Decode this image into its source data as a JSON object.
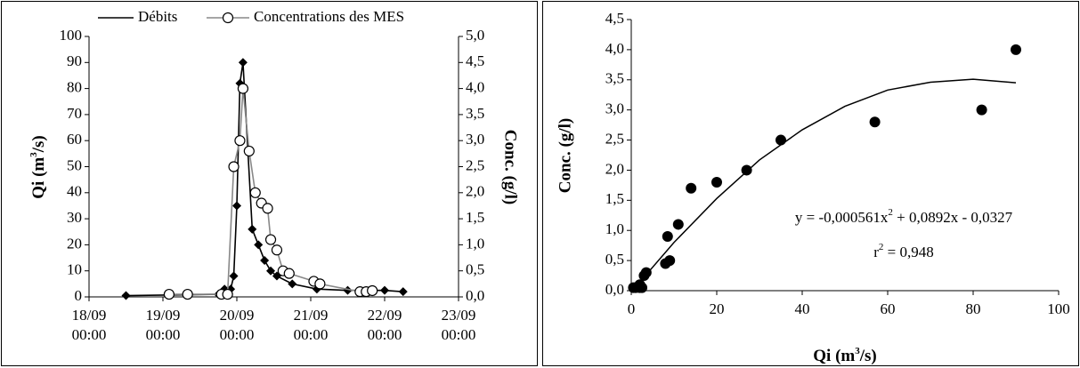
{
  "chart_data": [
    {
      "type": "line",
      "ylabel_parts": [
        "Qi (m",
        "3",
        "/s)"
      ],
      "y2label": "Conc. (g/l)",
      "xlim": [
        "18/09 00:00",
        "23/09 00:00"
      ],
      "xticks": [
        "18/09 00:00",
        "19/09 00:00",
        "20/09 00:00",
        "21/09 00:00",
        "22/09 00:00",
        "23/09 00:00"
      ],
      "ylim": [
        0,
        100
      ],
      "yticks": [
        0,
        10,
        20,
        30,
        40,
        50,
        60,
        70,
        80,
        90,
        100
      ],
      "y2lim": [
        0,
        5
      ],
      "y2ticks": [
        {
          "value": 0,
          "label": "0,0"
        },
        {
          "value": 0.5,
          "label": "0,5"
        },
        {
          "value": 1,
          "label": "1,0"
        },
        {
          "value": 1.5,
          "label": "1,5"
        },
        {
          "value": 2,
          "label": "2,0"
        },
        {
          "value": 2.5,
          "label": "2,5"
        },
        {
          "value": 3,
          "label": "3,0"
        },
        {
          "value": 3.5,
          "label": "3,5"
        },
        {
          "value": 4,
          "label": "4,0"
        },
        {
          "value": 4.5,
          "label": "4,5"
        },
        {
          "value": 5,
          "label": "5,0"
        }
      ],
      "series": [
        {
          "name": "Débits",
          "color": "#000000",
          "marker": "diamond",
          "x": [
            "18/09 12:00",
            "19/09 18:00",
            "19/09 20:00",
            "19/09 22:00",
            "19/09 23:00",
            "20/09 00:00",
            "20/09 01:00",
            "20/09 02:00",
            "20/09 05:00",
            "20/09 07:00",
            "20/09 09:00",
            "20/09 11:00",
            "20/09 13:00",
            "20/09 18:00",
            "21/09 02:00",
            "21/09 12:00",
            "22/09 00:00",
            "22/09 06:00"
          ],
          "values": [
            0.5,
            1,
            3,
            3,
            8,
            35,
            82,
            90,
            26,
            20,
            14,
            10,
            8,
            5,
            3,
            2.5,
            2.5,
            2
          ]
        },
        {
          "name": "Concentrations des MES",
          "color": "#888888",
          "marker": "circle",
          "axis": "y2",
          "x": [
            "19/09 02:00",
            "19/09 08:00",
            "19/09 19:00",
            "19/09 21:00",
            "19/09 23:00",
            "20/09 01:00",
            "20/09 02:00",
            "20/09 04:00",
            "20/09 06:00",
            "20/09 08:00",
            "20/09 10:00",
            "20/09 11:00",
            "20/09 13:00",
            "20/09 15:00",
            "20/09 17:00",
            "21/09 01:00",
            "21/09 03:00",
            "21/09 16:00",
            "21/09 18:00",
            "21/09 20:00"
          ],
          "values": [
            0.05,
            0.05,
            0.05,
            0.05,
            2.5,
            3.0,
            4.0,
            2.8,
            2.0,
            1.8,
            1.7,
            1.1,
            0.9,
            0.5,
            0.45,
            0.3,
            0.25,
            0.1,
            0.1,
            0.12
          ]
        }
      ]
    },
    {
      "type": "scatter",
      "xlabel_parts": [
        "Qi (m",
        "3",
        "/s)"
      ],
      "ylabel": "Conc. (g/l)",
      "xlim": [
        0,
        100
      ],
      "xticks": [
        0,
        20,
        40,
        60,
        80,
        100
      ],
      "ylim": [
        0,
        4.5
      ],
      "yticks": [
        {
          "value": 0,
          "label": "0,0"
        },
        {
          "value": 0.5,
          "label": "0,5"
        },
        {
          "value": 1,
          "label": "1,0"
        },
        {
          "value": 1.5,
          "label": "1,5"
        },
        {
          "value": 2,
          "label": "2,0"
        },
        {
          "value": 2.5,
          "label": "2,5"
        },
        {
          "value": 3,
          "label": "3,0"
        },
        {
          "value": 3.5,
          "label": "3,5"
        },
        {
          "value": 4,
          "label": "4,0"
        },
        {
          "value": 4.5,
          "label": "4,5"
        }
      ],
      "color": "#000000",
      "x": [
        0.5,
        1,
        2,
        2.5,
        2,
        3,
        3.5,
        8,
        8.5,
        9,
        11,
        14,
        20,
        27,
        35,
        57,
        82,
        90
      ],
      "values": [
        0.05,
        0.05,
        0.05,
        0.05,
        0.1,
        0.25,
        0.3,
        0.45,
        0.9,
        0.5,
        1.1,
        1.7,
        1.8,
        2.0,
        2.5,
        2.8,
        3.0,
        4.0
      ],
      "trendline": {
        "x": [
          1,
          10,
          20,
          30,
          40,
          50,
          60,
          70,
          80,
          90
        ],
        "values": [
          0.06,
          0.8,
          1.53,
          2.17,
          2.67,
          3.06,
          3.33,
          3.46,
          3.51,
          3.45
        ]
      },
      "equation_parts": [
        "y = -0,000561x",
        "2",
        " + 0,0892x - 0,0327"
      ],
      "r2_parts": [
        "r",
        "2",
        " = 0,948"
      ]
    }
  ]
}
